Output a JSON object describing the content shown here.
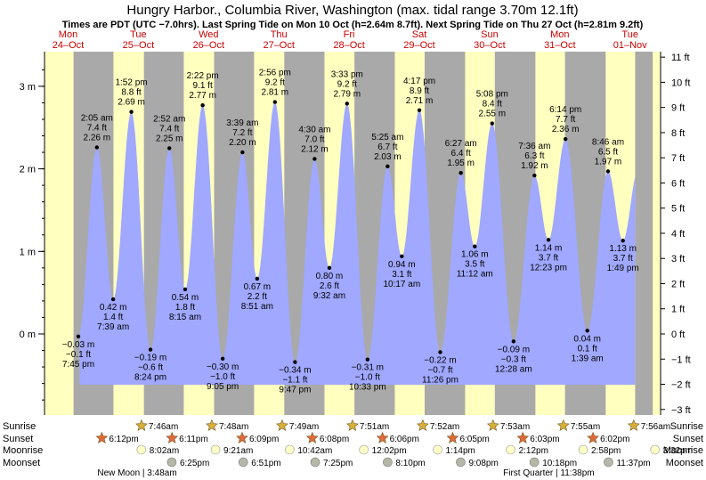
{
  "chart_data": {
    "type": "area",
    "title": "Hungry Harbor., Columbia River, Washington (max. tidal range 3.70m 12.1ft)",
    "subtitle": "Times are PDT (UTC −7.0hrs). Last Spring Tide on Mon 10 Oct (h=2.64m 8.7ft). Next Spring Tide on Thu 27 Oct (h=2.81m 9.2ft)",
    "x_range": [
      0,
      8.5
    ],
    "ylim_m": [
      -0.9,
      3.35
    ],
    "ylim_ft": [
      -3,
      11
    ],
    "left_ticks": [
      "0 m",
      "1 m",
      "2 m",
      "3 m"
    ],
    "left_tick_values": [
      0,
      1,
      2,
      3
    ],
    "right_ticks": [
      "−3 ft",
      "−2 ft",
      "−1 ft",
      "0 ft",
      "1 ft",
      "2 ft",
      "3 ft",
      "4 ft",
      "5 ft",
      "6 ft",
      "7 ft",
      "8 ft",
      "9 ft",
      "10 ft",
      "11 ft"
    ],
    "right_tick_values": [
      -3,
      -2,
      -1,
      0,
      1,
      2,
      3,
      4,
      5,
      6,
      7,
      8,
      9,
      10,
      11
    ],
    "days": [
      {
        "dow": "Mon",
        "date": "24–Oct",
        "x": 0.0
      },
      {
        "dow": "Tue",
        "date": "25–Oct",
        "x": 1.0
      },
      {
        "dow": "Wed",
        "date": "26–Oct",
        "x": 2.0
      },
      {
        "dow": "Thu",
        "date": "27–Oct",
        "x": 3.0
      },
      {
        "dow": "Fri",
        "date": "28–Oct",
        "x": 4.0
      },
      {
        "dow": "Sat",
        "date": "29–Oct",
        "x": 5.0
      },
      {
        "dow": "Sun",
        "date": "30–Oct",
        "x": 6.0
      },
      {
        "dow": "Mon",
        "date": "31–Oct",
        "x": 7.0
      },
      {
        "dow": "Tue",
        "date": "01–Nov",
        "x": 8.0
      }
    ],
    "tides": [
      {
        "x": 0.323,
        "m": -0.03,
        "hl": "l",
        "time": "7:45 pm",
        "mt": "−0.03 m",
        "ft": "−0.1 ft"
      },
      {
        "x": 0.587,
        "m": 2.26,
        "hl": "h",
        "time": "2:05 am",
        "mt": "2.26 m",
        "ft": "7.4 ft"
      },
      {
        "x": 0.819,
        "m": 0.42,
        "hl": "l",
        "time": "7:39 am",
        "mt": "0.42 m",
        "ft": "1.4 ft"
      },
      {
        "x": 1.078,
        "m": 2.69,
        "hl": "h",
        "time": "1:52 pm",
        "mt": "2.69 m",
        "ft": "8.8 ft"
      },
      {
        "x": 1.35,
        "m": -0.19,
        "hl": "l",
        "time": "8:24 pm",
        "mt": "−0.19 m",
        "ft": "−0.6 ft"
      },
      {
        "x": 1.619,
        "m": 2.25,
        "hl": "h",
        "time": "2:52 am",
        "mt": "2.25 m",
        "ft": "7.4 ft"
      },
      {
        "x": 1.844,
        "m": 0.54,
        "hl": "l",
        "time": "8:15 am",
        "mt": "0.54 m",
        "ft": "1.8 ft"
      },
      {
        "x": 2.093,
        "m": 2.77,
        "hl": "h",
        "time": "2:22 pm",
        "mt": "2.77 m",
        "ft": "9.1 ft"
      },
      {
        "x": 2.378,
        "m": -0.3,
        "hl": "l",
        "time": "9:05 pm",
        "mt": "−0.30 m",
        "ft": "−1.0 ft"
      },
      {
        "x": 2.66,
        "m": 2.2,
        "hl": "h",
        "time": "3:39 am",
        "mt": "2.20 m",
        "ft": "7.2 ft"
      },
      {
        "x": 2.869,
        "m": 0.67,
        "hl": "l",
        "time": "8:51 am",
        "mt": "0.67 m",
        "ft": "2.2 ft"
      },
      {
        "x": 3.122,
        "m": 2.81,
        "hl": "h",
        "time": "2:56 pm",
        "mt": "2.81 m",
        "ft": "9.2 ft"
      },
      {
        "x": 3.408,
        "m": -0.34,
        "hl": "l",
        "time": "9:47 pm",
        "mt": "−0.34 m",
        "ft": "−1.1 ft"
      },
      {
        "x": 3.687,
        "m": 2.12,
        "hl": "h",
        "time": "4:30 am",
        "mt": "2.12 m",
        "ft": "7.0 ft"
      },
      {
        "x": 3.897,
        "m": 0.8,
        "hl": "l",
        "time": "9:32 am",
        "mt": "0.80 m",
        "ft": "2.6 ft"
      },
      {
        "x": 4.148,
        "m": 2.79,
        "hl": "h",
        "time": "3:33 pm",
        "mt": "2.79 m",
        "ft": "9.2 ft"
      },
      {
        "x": 4.44,
        "m": -0.31,
        "hl": "l",
        "time": "10:33 pm",
        "mt": "−0.31 m",
        "ft": "−1.0 ft"
      },
      {
        "x": 4.726,
        "m": 2.03,
        "hl": "h",
        "time": "5:25 am",
        "mt": "2.03 m",
        "ft": "6.7 ft"
      },
      {
        "x": 4.928,
        "m": 0.94,
        "hl": "l",
        "time": "10:17 am",
        "mt": "0.94 m",
        "ft": "3.1 ft"
      },
      {
        "x": 5.178,
        "m": 2.71,
        "hl": "h",
        "time": "4:17 pm",
        "mt": "2.71 m",
        "ft": "8.9 ft"
      },
      {
        "x": 5.475,
        "m": -0.22,
        "hl": "l",
        "time": "11:26 pm",
        "mt": "−0.22 m",
        "ft": "−0.7 ft"
      },
      {
        "x": 5.769,
        "m": 1.95,
        "hl": "h",
        "time": "6:27 am",
        "mt": "1.95 m",
        "ft": "6.4 ft"
      },
      {
        "x": 5.967,
        "m": 1.06,
        "hl": "l",
        "time": "11:12 am",
        "mt": "1.06 m",
        "ft": "3.5 ft"
      },
      {
        "x": 6.214,
        "m": 2.55,
        "hl": "h",
        "time": "5:08 pm",
        "mt": "2.55 m",
        "ft": "8.4 ft"
      },
      {
        "x": 6.519,
        "m": -0.09,
        "hl": "l",
        "time": "12:28 am",
        "mt": "−0.09 m",
        "ft": "−0.3 ft"
      },
      {
        "x": 6.817,
        "m": 1.92,
        "hl": "h",
        "time": "7:36 am",
        "mt": "1.92 m",
        "ft": "6.3 ft"
      },
      {
        "x": 7.016,
        "m": 1.14,
        "hl": "l",
        "time": "12:23 pm",
        "mt": "1.14 m",
        "ft": "3.7 ft"
      },
      {
        "x": 7.258,
        "m": 2.36,
        "hl": "h",
        "time": "6:14 pm",
        "mt": "2.36 m",
        "ft": "7.7 ft"
      },
      {
        "x": 7.569,
        "m": 0.04,
        "hl": "l",
        "time": "1:39 am",
        "mt": "0.04 m",
        "ft": "0.1 ft"
      },
      {
        "x": 7.864,
        "m": 1.97,
        "hl": "h",
        "time": "8:46 am",
        "mt": "1.97 m",
        "ft": "6.5 ft"
      },
      {
        "x": 8.076,
        "m": 1.13,
        "hl": "l",
        "time": "1:49 pm",
        "mt": "1.13 m",
        "ft": "3.7 ft"
      }
    ],
    "night_bands": [
      [
        0.255,
        0.823
      ],
      [
        1.257,
        1.824
      ],
      [
        2.256,
        2.825
      ],
      [
        3.255,
        3.827
      ],
      [
        4.254,
        4.828
      ],
      [
        5.253,
        5.829
      ],
      [
        6.252,
        6.83
      ],
      [
        7.251,
        7.83
      ],
      [
        8.25,
        8.5
      ]
    ],
    "sunrise": [
      "7:46am",
      "7:48am",
      "7:49am",
      "7:51am",
      "7:52am",
      "7:53am",
      "7:55am",
      "7:56am"
    ],
    "sunset": [
      "6:12pm",
      "6:11pm",
      "6:09pm",
      "6:08pm",
      "6:06pm",
      "6:05pm",
      "6:03pm",
      "6:02pm"
    ],
    "moonrise": [
      "8:02am",
      "9:21am",
      "10:42am",
      "12:02pm",
      "1:14pm",
      "2:12pm",
      "2:58pm",
      "3:32pm"
    ],
    "moonset": [
      "6:25pm",
      "6:51pm",
      "7:25pm",
      "8:10pm",
      "9:08pm",
      "10:18pm",
      "11:37pm"
    ],
    "row_labels": {
      "sunrise": "Sunrise",
      "sunset": "Sunset",
      "moonrise": "Moonrise",
      "moonset": "Moonset"
    },
    "moon_phase_notes": [
      "New Moon | 3:48am",
      "First Quarter | 11:38pm"
    ],
    "colors": {
      "day": "#ffffc0",
      "night": "#a9a9a9",
      "water": "#a0a8ff",
      "sunset_star": "#e06a3a",
      "sunrise_star": "#d8b038",
      "moonrise": "#ffffc8",
      "moonset": "#b4b8a8",
      "text": "#000000",
      "date_red": "#cc0000"
    }
  }
}
